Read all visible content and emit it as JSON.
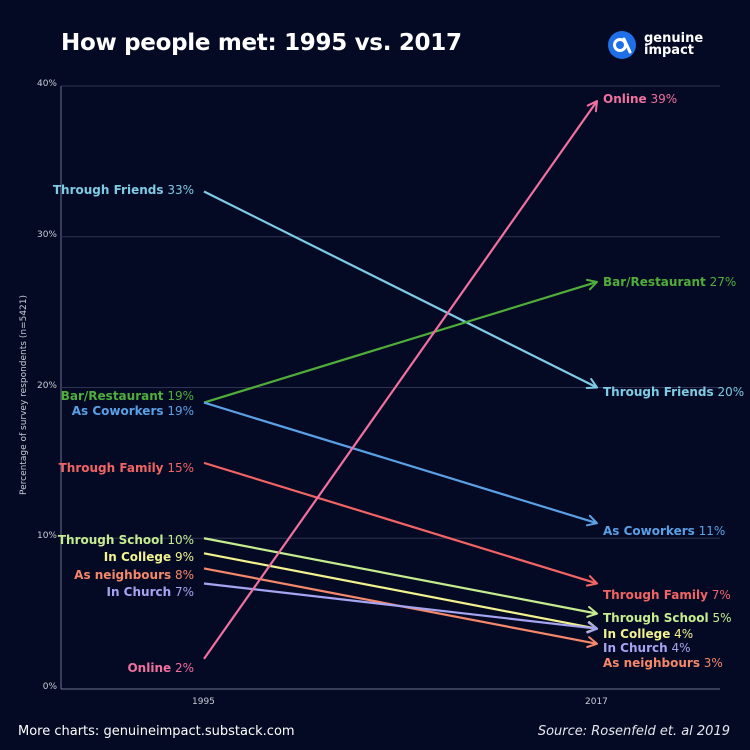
{
  "title": "How people met: 1995 vs. 2017",
  "brand": {
    "line1": "genuine",
    "line2": "impact"
  },
  "footer": {
    "left": "More charts: genuineimpact.substack.com",
    "right": "Source: Rosenfeld et. al 2019"
  },
  "chart_data": {
    "type": "slope",
    "title": "How people met: 1995 vs. 2017",
    "ylabel": "Percentage of survey respondents (n=5421)",
    "xlabel": "",
    "x": [
      "1995",
      "2017"
    ],
    "ylim": [
      0,
      40
    ],
    "yticks": [
      "0%",
      "10%",
      "20%",
      "30%",
      "40%"
    ],
    "series": [
      {
        "name": "Through Friends",
        "v1995": 33,
        "v2017": 20,
        "label1995": "33%",
        "label2017": "20%",
        "color": "#7ecbe6"
      },
      {
        "name": "Bar/Restaurant",
        "v1995": 19,
        "v2017": 27,
        "label1995": "19%",
        "label2017": "27%",
        "color": "#4fae3a"
      },
      {
        "name": "As Coworkers",
        "v1995": 19,
        "v2017": 11,
        "label1995": "19%",
        "label2017": "11%",
        "color": "#5aa0e6"
      },
      {
        "name": "Through Family",
        "v1995": 15,
        "v2017": 7,
        "label1995": "15%",
        "label2017": "7%",
        "color": "#f26464"
      },
      {
        "name": "Through School",
        "v1995": 10,
        "v2017": 5,
        "label1995": "10%",
        "label2017": "5%",
        "color": "#c5ed8f"
      },
      {
        "name": "In College",
        "v1995": 9,
        "v2017": 4,
        "label1995": "9%",
        "label2017": "4%",
        "color": "#f2f28f"
      },
      {
        "name": "As neighbours",
        "v1995": 8,
        "v2017": 3,
        "label1995": "8%",
        "label2017": "3%",
        "color": "#f5876a"
      },
      {
        "name": "In Church",
        "v1995": 7,
        "v2017": 4,
        "label1995": "7%",
        "label2017": "4%",
        "color": "#a5a5f2"
      },
      {
        "name": "Online",
        "v1995": 2,
        "v2017": 39,
        "label1995": "2%",
        "label2017": "39%",
        "color": "#f0709f"
      }
    ]
  }
}
